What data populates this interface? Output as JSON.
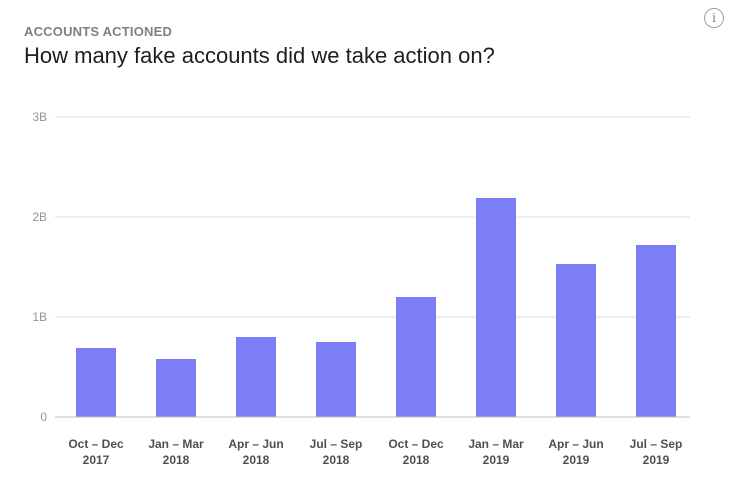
{
  "header": {
    "eyebrow": "ACCOUNTS ACTIONED",
    "title": "How many fake accounts did we take action on?",
    "info_icon": "info-icon",
    "info_glyph": "i"
  },
  "colors": {
    "bar": "#7b7ef4",
    "grid": "#dddfe2",
    "axis": "#bec2c9"
  },
  "chart_data": {
    "type": "bar",
    "categories": [
      [
        "Oct – Dec",
        "2017"
      ],
      [
        "Jan – Mar",
        "2018"
      ],
      [
        "Apr – Jun",
        "2018"
      ],
      [
        "Jul – Sep",
        "2018"
      ],
      [
        "Oct – Dec",
        "2018"
      ],
      [
        "Jan – Mar",
        "2019"
      ],
      [
        "Apr – Jun",
        "2019"
      ],
      [
        "Jul – Sep",
        "2019"
      ]
    ],
    "values": [
      0.69,
      0.58,
      0.8,
      0.75,
      1.2,
      2.19,
      1.53,
      1.72
    ],
    "unit": "billion",
    "ylim": [
      0,
      3
    ],
    "yticks": [
      {
        "value": 0,
        "label": "0"
      },
      {
        "value": 1,
        "label": "1B"
      },
      {
        "value": 2,
        "label": "2B"
      },
      {
        "value": 3,
        "label": "3B"
      }
    ],
    "grid": true,
    "legend": "none"
  }
}
